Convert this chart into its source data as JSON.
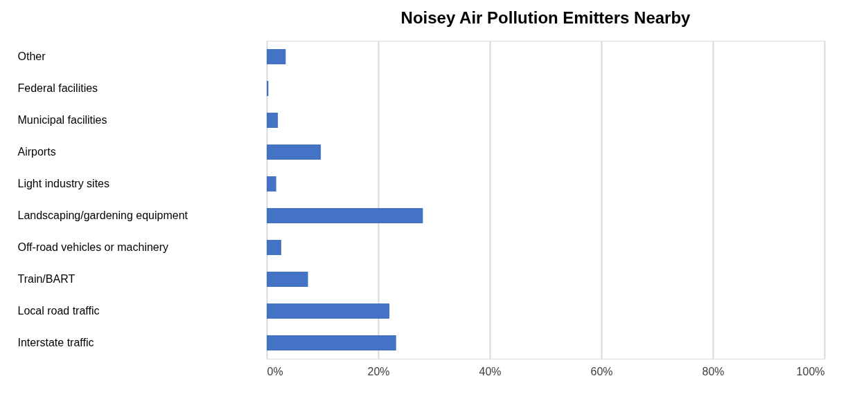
{
  "chart_data": {
    "type": "bar",
    "orientation": "horizontal",
    "title": "Noisey Air Pollution Emitters Nearby",
    "categories": [
      "Other",
      "Federal facilities",
      "Municipal facilities",
      "Airports",
      "Light industry sites",
      "Landscaping/gardening equipment",
      "Off-road vehicles or machinery",
      "Train/BART",
      "Local road traffic",
      "Interstate traffic"
    ],
    "values": [
      3.4,
      0.3,
      2.0,
      9.7,
      1.7,
      28.0,
      2.6,
      7.4,
      22.0,
      23.2
    ],
    "color": "#4472c4",
    "xlim": [
      0,
      100
    ],
    "xticks": [
      {
        "value": 0,
        "label": "0%"
      },
      {
        "value": 20,
        "label": "20%"
      },
      {
        "value": 40,
        "label": "40%"
      },
      {
        "value": 60,
        "label": "60%"
      },
      {
        "value": 80,
        "label": "80%"
      },
      {
        "value": 100,
        "label": "100%"
      }
    ],
    "grid": "x"
  }
}
